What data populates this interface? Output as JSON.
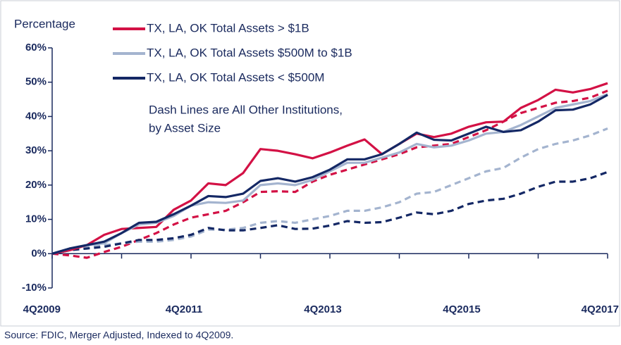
{
  "chart_data": {
    "type": "line",
    "ylabel": "Percentage",
    "annotations": [
      "Dash Lines are All Other Institutions,",
      "by Asset Size"
    ],
    "source": "Source: FDIC, Merger Adjusted, Indexed to 4Q2009.",
    "categories": [
      "4Q2009",
      null,
      null,
      null,
      null,
      null,
      null,
      null,
      "4Q2011",
      null,
      null,
      null,
      null,
      null,
      null,
      null,
      "4Q2013",
      null,
      null,
      null,
      null,
      null,
      null,
      null,
      "4Q2015",
      null,
      null,
      null,
      null,
      null,
      null,
      null,
      "4Q2017"
    ],
    "ylim": [
      -10,
      60
    ],
    "yticks": [
      {
        "value": -10,
        "label": "-10%"
      },
      {
        "value": 0,
        "label": "0%"
      },
      {
        "value": 10,
        "label": "10%"
      },
      {
        "value": 20,
        "label": "20%"
      },
      {
        "value": 30,
        "label": "30%"
      },
      {
        "value": 40,
        "label": "40%"
      },
      {
        "value": 50,
        "label": "50%"
      },
      {
        "value": 60,
        "label": "60%"
      }
    ],
    "series": [
      {
        "name": "TX, LA, OK Total Assets > $1B",
        "color": "#d31145",
        "dashed": false,
        "values": [
          0,
          1,
          2.5,
          5.5,
          7.2,
          7.5,
          7.8,
          12.8,
          15.5,
          20.5,
          20,
          23.5,
          30.5,
          30,
          29,
          27.8,
          29.5,
          31.5,
          33.3,
          29,
          32,
          35,
          34,
          35,
          37,
          38.3,
          38.5,
          42.5,
          44.8,
          47.8,
          47,
          48,
          49.7
        ]
      },
      {
        "name": "TX, LA, OK Total Assets $500M to $1B",
        "color": "#a4b4cf",
        "dashed": false,
        "values": [
          0,
          1.5,
          2.5,
          3,
          6,
          8.5,
          9,
          11,
          14,
          15,
          14.8,
          15.5,
          20,
          20.5,
          20,
          21.5,
          24,
          26.5,
          26.5,
          28,
          29.5,
          32,
          31,
          31.5,
          33,
          35,
          35.5,
          37.5,
          40,
          42.5,
          43.5,
          44.5,
          46.5
        ]
      },
      {
        "name": "TX, LA, OK Total Assets < $500M",
        "color": "#142865",
        "dashed": false,
        "values": [
          0,
          1.5,
          2.5,
          3.5,
          6,
          9,
          9.3,
          11.5,
          14,
          16.8,
          16.5,
          17.5,
          21.2,
          22,
          21,
          22.3,
          24.5,
          27.5,
          27.5,
          29,
          32,
          35.3,
          33.2,
          33,
          35,
          37,
          35.5,
          36,
          38.5,
          41.8,
          42,
          43.5,
          46.3
        ]
      },
      {
        "color": "#d31145",
        "dashed": true,
        "values": [
          0,
          -0.5,
          -1.2,
          0.5,
          2,
          4,
          6,
          8.5,
          10.5,
          11.5,
          12.5,
          15,
          18,
          18.2,
          18,
          21,
          23,
          24.5,
          26,
          27.5,
          29,
          31,
          31.5,
          32,
          34,
          36,
          38.5,
          41,
          42.5,
          44,
          44.5,
          45.5,
          47.5
        ]
      },
      {
        "color": "#a4b4cf",
        "dashed": true,
        "values": [
          0,
          1,
          2,
          2.5,
          3,
          3.5,
          3.5,
          4,
          5,
          7,
          7,
          7.5,
          9,
          9.5,
          9,
          10,
          11,
          12.5,
          12.5,
          13.5,
          15,
          17.5,
          18,
          20,
          22,
          24,
          25,
          28,
          30.5,
          32,
          33,
          34.5,
          36.5
        ]
      },
      {
        "color": "#142865",
        "dashed": true,
        "values": [
          0,
          1,
          1.5,
          2,
          3,
          4,
          4,
          4.5,
          5.5,
          7.5,
          6.8,
          6.8,
          7.5,
          8.3,
          7.2,
          7.3,
          8.2,
          9.5,
          9,
          9.2,
          10.5,
          12,
          11.5,
          12.5,
          14.5,
          15.5,
          16,
          17.5,
          19.5,
          21,
          21,
          22,
          23.8
        ]
      }
    ]
  }
}
